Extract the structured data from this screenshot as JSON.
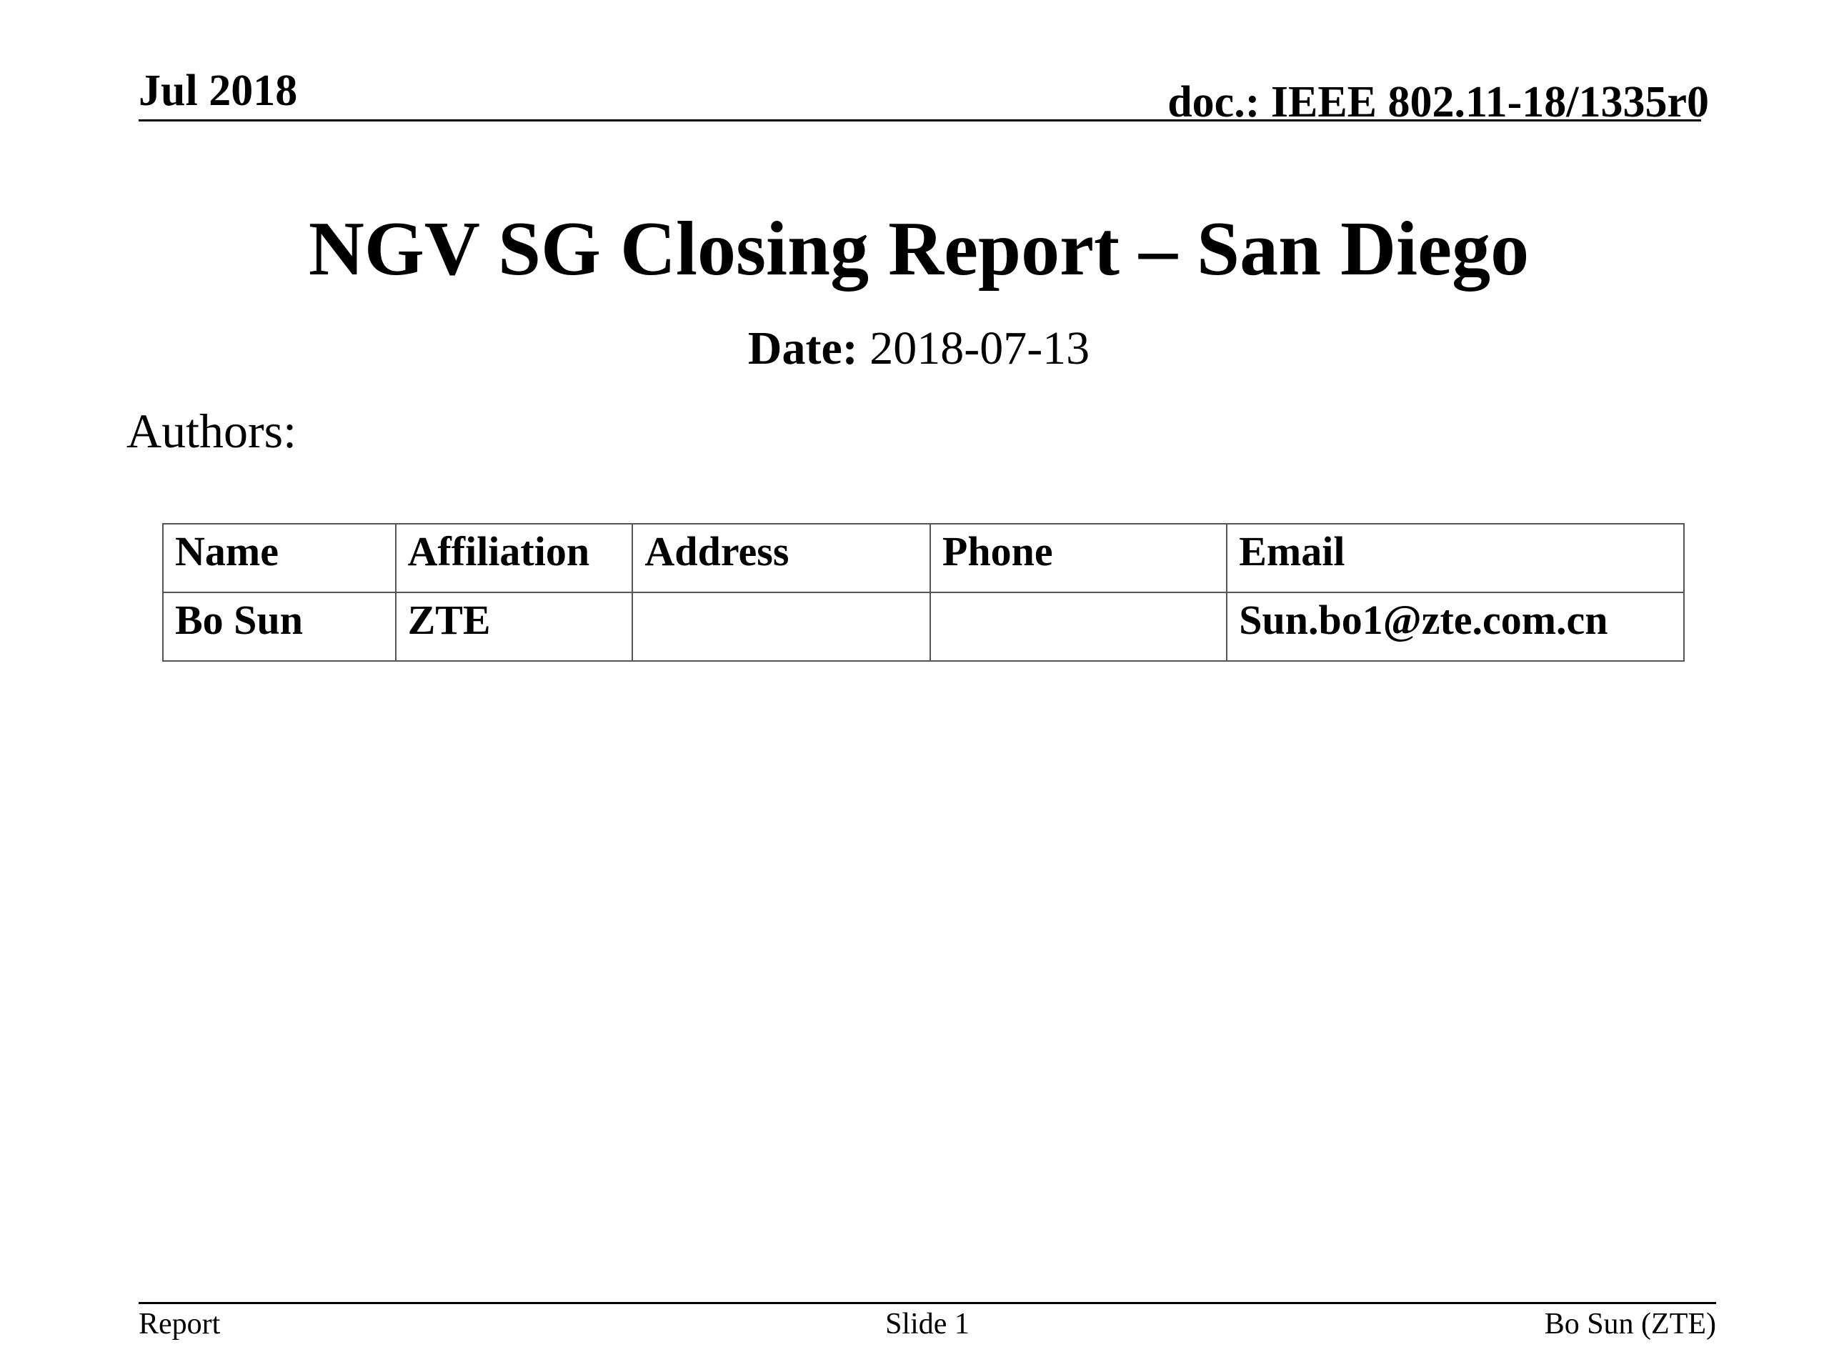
{
  "header": {
    "date": "Jul 2018",
    "doc": "doc.: IEEE 802.11-18/1335r0"
  },
  "title": "NGV SG Closing Report – San Diego",
  "date_line": {
    "label": "Date:",
    "value": " 2018-07-13"
  },
  "authors_label": "Authors:",
  "authors_table": {
    "headers": [
      "Name",
      "Affiliation",
      "Address",
      "Phone",
      "Email"
    ],
    "rows": [
      [
        "Bo Sun",
        "ZTE",
        "",
        "",
        "Sun.bo1@zte.com.cn"
      ]
    ]
  },
  "footer": {
    "left": "Report",
    "center": "Slide 1",
    "right": "Bo Sun (ZTE)"
  }
}
